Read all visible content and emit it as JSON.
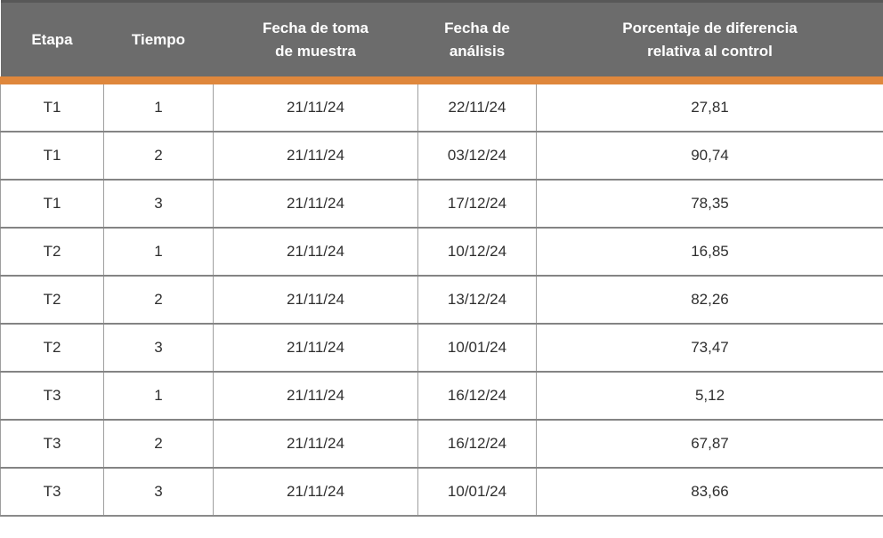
{
  "colors": {
    "header_bg": "#6c6c6c",
    "header_text": "#ffffff",
    "accent_orange": "#df873c",
    "row_border": "#848484",
    "cell_border": "#9f9f9f",
    "body_text": "#2f2f2f"
  },
  "table": {
    "columns": [
      {
        "id": "etapa",
        "label": "Etapa"
      },
      {
        "id": "tiempo",
        "label": "Tiempo"
      },
      {
        "id": "fecha-toma",
        "label": "Fecha de toma\nde muestra"
      },
      {
        "id": "fecha-analisis",
        "label": "Fecha de\nanálisis"
      },
      {
        "id": "porcentaje",
        "label": "Porcentaje de diferencia\nrelativa al control"
      }
    ],
    "rows": [
      [
        "T1",
        "1",
        "21/11/24",
        "22/11/24",
        "27,81"
      ],
      [
        "T1",
        "2",
        "21/11/24",
        "03/12/24",
        "90,74"
      ],
      [
        "T1",
        "3",
        "21/11/24",
        "17/12/24",
        "78,35"
      ],
      [
        "T2",
        "1",
        "21/11/24",
        "10/12/24",
        "16,85"
      ],
      [
        "T2",
        "2",
        "21/11/24",
        "13/12/24",
        "82,26"
      ],
      [
        "T2",
        "3",
        "21/11/24",
        "10/01/24",
        "73,47"
      ],
      [
        "T3",
        "1",
        "21/11/24",
        "16/12/24",
        "5,12"
      ],
      [
        "T3",
        "2",
        "21/11/24",
        "16/12/24",
        "67,87"
      ],
      [
        "T3",
        "3",
        "21/11/24",
        "10/01/24",
        "83,66"
      ]
    ]
  }
}
